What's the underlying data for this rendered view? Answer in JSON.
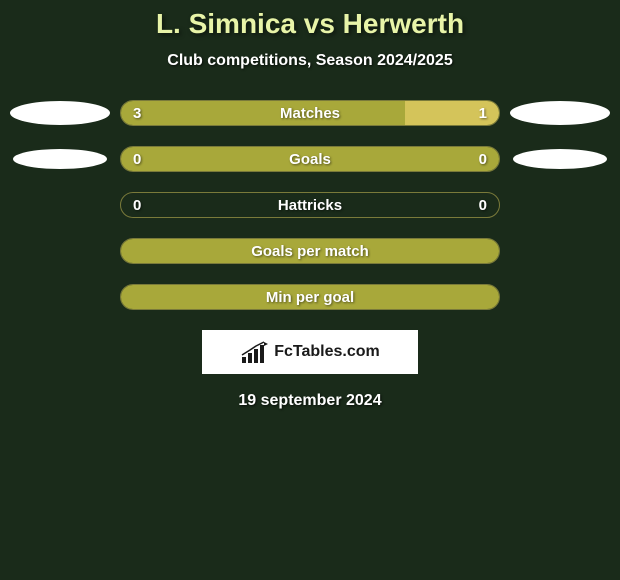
{
  "header": {
    "title": "L. Simnica vs Herwerth",
    "subtitle": "Club competitions, Season 2024/2025"
  },
  "colors": {
    "background": "#1a2b1a",
    "title_color": "#e8f4a8",
    "text_color": "#ffffff",
    "bar_fill_main": "#a8a83a",
    "bar_fill_accent": "#d4c45a",
    "bar_border": "#7a7a3a",
    "icon_color": "#ffffff",
    "logo_bg": "#ffffff",
    "logo_text": "#1a1a1a"
  },
  "stats": [
    {
      "label": "Matches",
      "left_value": "3",
      "right_value": "1",
      "left_fill_pct": 75,
      "right_fill_pct": 25,
      "show_left_icon": true,
      "show_right_icon": true,
      "icon_size": "large"
    },
    {
      "label": "Goals",
      "left_value": "0",
      "right_value": "0",
      "left_fill_pct": 100,
      "right_fill_pct": 0,
      "show_left_icon": true,
      "show_right_icon": true,
      "icon_size": "small"
    },
    {
      "label": "Hattricks",
      "left_value": "0",
      "right_value": "0",
      "left_fill_pct": 0,
      "right_fill_pct": 0,
      "show_left_icon": false,
      "show_right_icon": false
    },
    {
      "label": "Goals per match",
      "left_value": "",
      "right_value": "",
      "left_fill_pct": 100,
      "right_fill_pct": 0,
      "show_left_icon": false,
      "show_right_icon": false
    },
    {
      "label": "Min per goal",
      "left_value": "",
      "right_value": "",
      "left_fill_pct": 100,
      "right_fill_pct": 0,
      "show_left_icon": false,
      "show_right_icon": false
    }
  ],
  "logo": {
    "text": "FcTables.com"
  },
  "footer": {
    "date": "19 september 2024"
  }
}
